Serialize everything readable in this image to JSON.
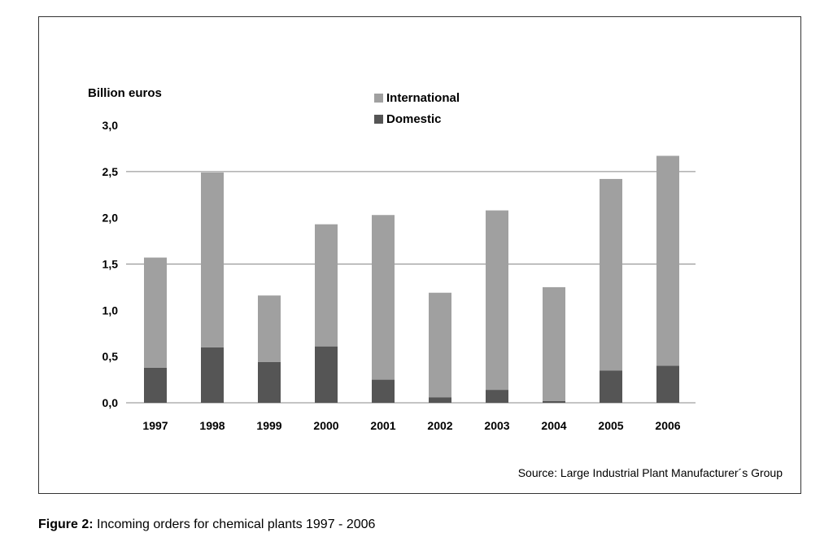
{
  "figure": {
    "caption_label": "Figure 2:",
    "caption_text": " Incoming orders for chemical plants 1997 - 2006",
    "source_note": "Source: Large Industrial Plant Manufacturer´s Group"
  },
  "chart_data": {
    "type": "bar",
    "stacked": true,
    "title": "",
    "xlabel": "",
    "ylabel": "Billion euros",
    "categories": [
      "1997",
      "1998",
      "1999",
      "2000",
      "2001",
      "2002",
      "2003",
      "2004",
      "2005",
      "2006"
    ],
    "series": [
      {
        "name": "Domestic",
        "color": "#555555",
        "values": [
          0.38,
          0.6,
          0.44,
          0.61,
          0.25,
          0.06,
          0.14,
          0.02,
          0.35,
          0.4
        ]
      },
      {
        "name": "International",
        "color": "#a0a0a0",
        "values": [
          1.19,
          1.89,
          0.72,
          1.32,
          1.78,
          1.13,
          1.94,
          1.23,
          2.07,
          2.27
        ]
      }
    ],
    "ylim": [
      0,
      3.0
    ],
    "yticks": [
      0.0,
      0.5,
      1.0,
      1.5,
      2.0,
      2.5,
      3.0
    ],
    "ytick_labels": [
      "0,0",
      "0,5",
      "1,0",
      "1,5",
      "2,0",
      "2,5",
      "3,0"
    ],
    "gridlines": [
      0.0,
      1.5,
      2.5
    ],
    "grid": true,
    "legend_order": [
      "International",
      "Domestic"
    ],
    "legend_position": "top-center"
  }
}
